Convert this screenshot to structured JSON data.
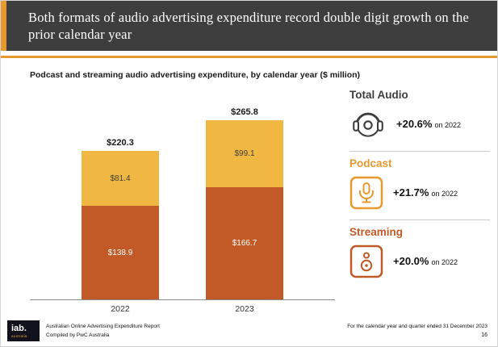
{
  "colors": {
    "header_bg": "#3e3e3e",
    "accent_orange": "#e8992e",
    "streaming_rust": "#c25a28",
    "podcast_amber": "#f0b843",
    "dark_text": "#3d3d3d"
  },
  "header": {
    "title": "Both formats of audio advertising expenditure record double digit growth on the prior calendar year"
  },
  "chart": {
    "title": "Podcast and streaming audio advertising expenditure, by calendar year ($ million)"
  },
  "chart_data": {
    "type": "bar",
    "stacked": true,
    "title": "Podcast and streaming audio advertising expenditure, by calendar year ($ million)",
    "categories": [
      "2022",
      "2023"
    ],
    "series": [
      {
        "name": "Streaming",
        "color": "#c25a28",
        "label_color": "#ffffff",
        "values": [
          138.9,
          166.7
        ]
      },
      {
        "name": "Podcast",
        "color": "#f0b843",
        "label_color": "#3d3d3d",
        "values": [
          81.4,
          99.1
        ]
      }
    ],
    "totals": [
      220.3,
      265.8
    ],
    "total_labels": [
      "$220.3",
      "$265.8"
    ],
    "segment_labels": [
      [
        "$138.9",
        "$81.4"
      ],
      [
        "$166.7",
        "$99.1"
      ]
    ],
    "ylim": [
      0,
      280
    ],
    "legend": "none",
    "grid": false
  },
  "stats": [
    {
      "label": "Total Audio",
      "value": "+20.6%",
      "suffix": "on 2022",
      "icon": "headphones-icon",
      "label_color": "#3d3d3d"
    },
    {
      "label": "Podcast",
      "value": "+21.7%",
      "suffix": "on 2022",
      "icon": "microphone-icon",
      "label_color": "#e8992e"
    },
    {
      "label": "Streaming",
      "value": "+20.0%",
      "suffix": "on 2022",
      "icon": "speaker-icon",
      "label_color": "#c25a28"
    }
  ],
  "footer": {
    "logo_text": "iab.",
    "logo_sub": "australia",
    "report_line1": "Australian Online Advertising Expenditure Report",
    "report_line2": "Compiled by PwC Australia",
    "right_note": "For the calendar year and quarter ended 31 December 2023",
    "page_number": "16"
  }
}
